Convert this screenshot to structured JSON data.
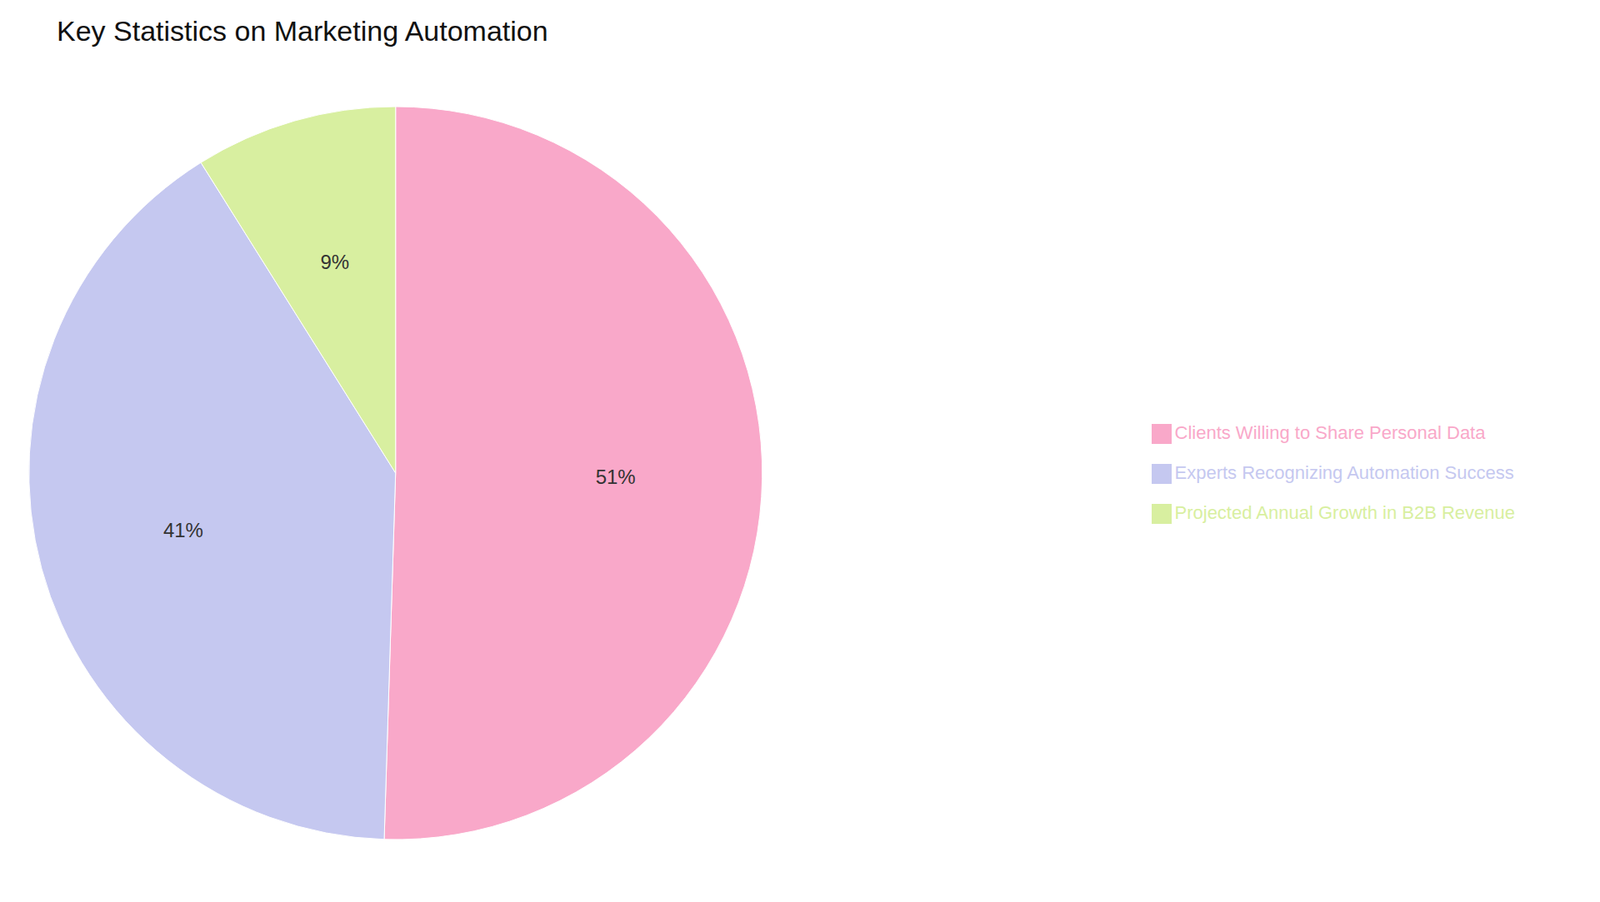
{
  "chart_data": {
    "type": "pie",
    "title": "Key Statistics on Marketing Automation",
    "categories": [
      "Clients Willing to Share Personal Data",
      "Experts Recognizing Automation Success",
      "Projected Annual Growth in B2B Revenue"
    ],
    "values": [
      51,
      41,
      9
    ],
    "value_labels": [
      "51%",
      "41%",
      "9%"
    ],
    "colors": [
      "#F9A8C9",
      "#C5C8F0",
      "#D8EFA0"
    ],
    "data_labels": true,
    "legend": "right"
  }
}
